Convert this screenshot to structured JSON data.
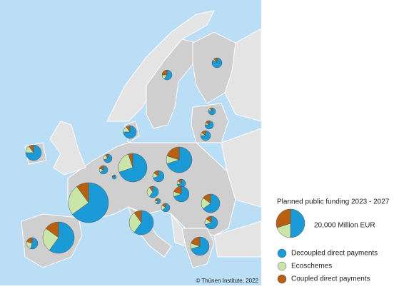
{
  "legend": {
    "title": "Planned public funding 2023 - 2027",
    "size_reference": {
      "value": 20000,
      "label": "20,000 Million EUR"
    },
    "series": [
      {
        "name": "Decoupled direct payments",
        "color": "#1a9ad6"
      },
      {
        "name": "Ecoschemes",
        "color": "#c9e6a8"
      },
      {
        "name": "Coupled direct payments",
        "color": "#b8600f"
      }
    ]
  },
  "credit": "© Thünen Institute, 2022",
  "pies": [
    [
      2080,
      120,
      250
    ],
    [
      1470,
      370,
      610
    ],
    [
      1000,
      125,
      125
    ],
    [
      1350,
      180,
      270
    ],
    [
      1840,
      245,
      365
    ],
    [
      3040,
      605,
      405
    ],
    [
      4540,
      905,
      605
    ],
    [
      1260,
      360,
      180
    ],
    [
      1170,
      270,
      360
    ],
    [
      14000,
      5000,
      1000
    ],
    [
      11340,
      1620,
      3240
    ],
    [
      2240,
      480,
      480
    ],
    [
      360,
      45,
      45
    ],
    [
      25480,
      9800,
      3920
    ],
    [
      1920,
      960,
      320
    ],
    [
      1260,
      270,
      270
    ],
    [
      4240,
      600,
      1210
    ],
    [
      480,
      160,
      160
    ],
    [
      1170,
      360,
      270
    ],
    [
      5490,
      1690,
      1270
    ],
    [
      2840,
      610,
      600
    ],
    [
      8670,
      4340,
      1440
    ],
    [
      14520,
      6050,
      3630
    ],
    [
      1760,
      800,
      640
    ],
    [
      5920,
      845,
      1685
    ]
  ]
}
